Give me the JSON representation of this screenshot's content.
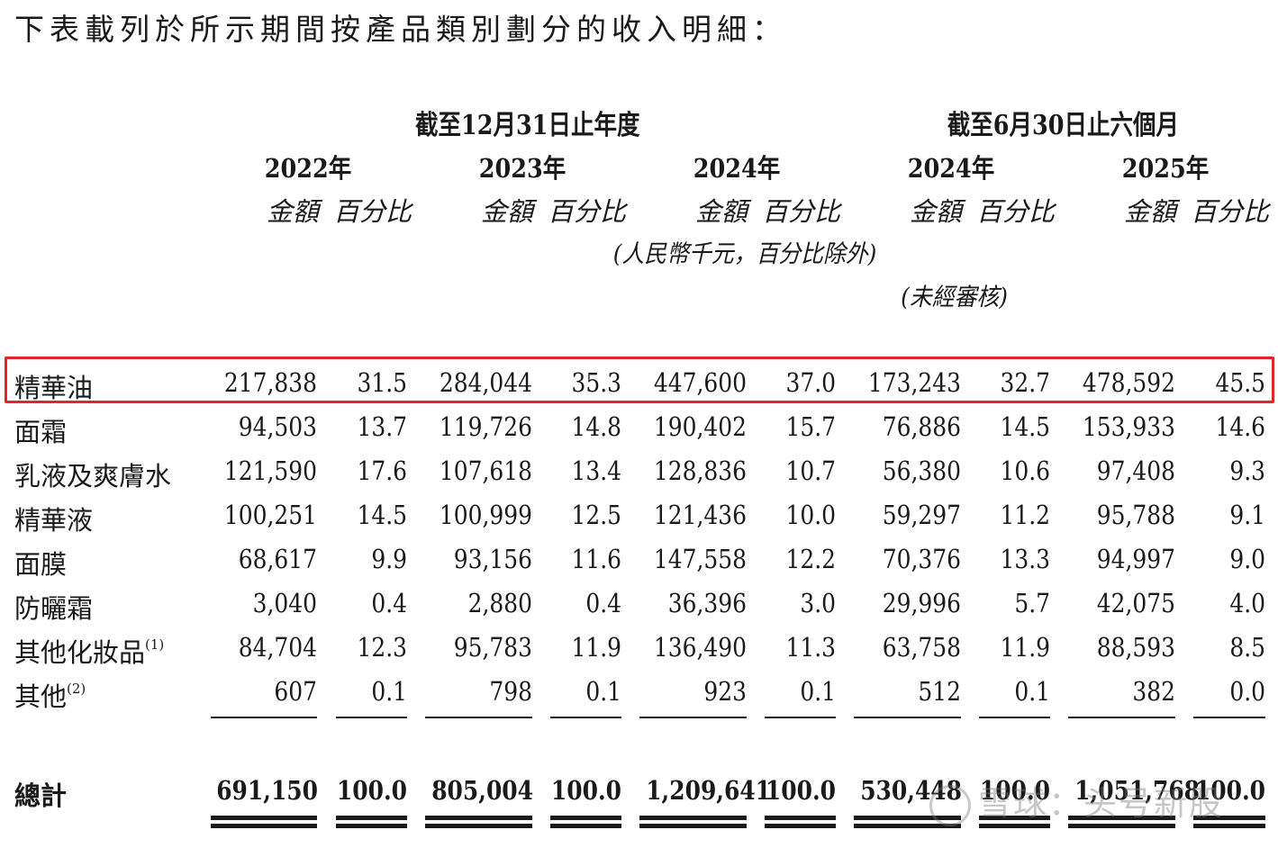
{
  "intro": "下表載列於所示期間按產品類別劃分的收入明細：",
  "headers": {
    "fy_group": "截至12月31日止年度",
    "h1_group": "截至6月30日止六個月",
    "years": [
      "2022年",
      "2023年",
      "2024年",
      "2024年",
      "2025年"
    ],
    "amount": "金額",
    "percent": "百分比",
    "unit_note": "(人民幣千元，百分比除外)",
    "unaudited": "(未經審核)"
  },
  "rows": [
    {
      "label": "精華油",
      "note": "",
      "values": [
        "217,838",
        "31.5",
        "284,044",
        "35.3",
        "447,600",
        "37.0",
        "173,243",
        "32.7",
        "478,592",
        "45.5"
      ]
    },
    {
      "label": "面霜",
      "note": "",
      "values": [
        "94,503",
        "13.7",
        "119,726",
        "14.8",
        "190,402",
        "15.7",
        "76,886",
        "14.5",
        "153,933",
        "14.6"
      ]
    },
    {
      "label": "乳液及爽膚水",
      "note": "",
      "values": [
        "121,590",
        "17.6",
        "107,618",
        "13.4",
        "128,836",
        "10.7",
        "56,380",
        "10.6",
        "97,408",
        "9.3"
      ]
    },
    {
      "label": "精華液",
      "note": "",
      "values": [
        "100,251",
        "14.5",
        "100,999",
        "12.5",
        "121,436",
        "10.0",
        "59,297",
        "11.2",
        "95,788",
        "9.1"
      ]
    },
    {
      "label": "面膜",
      "note": "",
      "values": [
        "68,617",
        "9.9",
        "93,156",
        "11.6",
        "147,558",
        "12.2",
        "70,376",
        "13.3",
        "94,997",
        "9.0"
      ]
    },
    {
      "label": "防曬霜",
      "note": "",
      "values": [
        "3,040",
        "0.4",
        "2,880",
        "0.4",
        "36,396",
        "3.0",
        "29,996",
        "5.7",
        "42,075",
        "4.0"
      ]
    },
    {
      "label": "其他化妝品",
      "note": "(1)",
      "values": [
        "84,704",
        "12.3",
        "95,783",
        "11.9",
        "136,490",
        "11.3",
        "63,758",
        "11.9",
        "88,593",
        "8.5"
      ]
    },
    {
      "label": "其他",
      "note": "(2)",
      "values": [
        "607",
        "0.1",
        "798",
        "0.1",
        "923",
        "0.1",
        "512",
        "0.1",
        "382",
        "0.0"
      ]
    }
  ],
  "total": {
    "label": "總計",
    "values": [
      "691,150",
      "100.0",
      "805,004",
      "100.0",
      "1,209,641",
      "100.0",
      "530,448",
      "100.0",
      "1,051,768",
      "100.0"
    ]
  },
  "watermark": "雪球：头号新股",
  "colors": {
    "highlight": "#e0262d",
    "text": "#1a1a1a"
  }
}
